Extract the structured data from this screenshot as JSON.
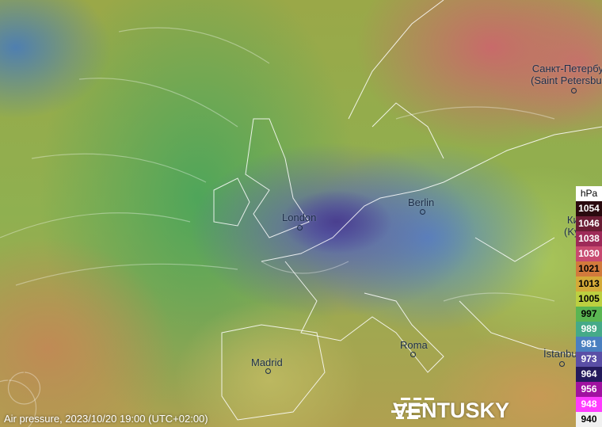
{
  "layer": "Air pressure",
  "caption": "Air pressure, 2023/10/20 19:00 (UTC+02:00)",
  "brand": "VENTUSKY",
  "cities": [
    {
      "name": "Санкт-Петербург",
      "alt": "(Saint Petersburg)"
    },
    {
      "name": "London"
    },
    {
      "name": "Berlin"
    },
    {
      "name": "Roma"
    },
    {
      "name": "Madrid"
    },
    {
      "name": "İstanbul"
    },
    {
      "name": "Київ",
      "alt": "(Kyiv)"
    }
  ],
  "legend": {
    "unit": "hPa",
    "items": [
      {
        "value": "1054",
        "color": "#2a0a0e",
        "text": "#fff"
      },
      {
        "value": "1046",
        "color": "#6b1d34",
        "text": "#fff"
      },
      {
        "value": "1038",
        "color": "#9e2a58",
        "text": "#fff"
      },
      {
        "value": "1030",
        "color": "#c84a70",
        "text": "#fff"
      },
      {
        "value": "1021",
        "color": "#d27a3c",
        "text": "#000"
      },
      {
        "value": "1013",
        "color": "#d4aa38",
        "text": "#000"
      },
      {
        "value": "1005",
        "color": "#bcd040",
        "text": "#000"
      },
      {
        "value": "997",
        "color": "#5ab552",
        "text": "#000"
      },
      {
        "value": "989",
        "color": "#45aa88",
        "text": "#fff"
      },
      {
        "value": "981",
        "color": "#4a7fc0",
        "text": "#fff"
      },
      {
        "value": "973",
        "color": "#5a4ea6",
        "text": "#fff"
      },
      {
        "value": "964",
        "color": "#241a5c",
        "text": "#fff"
      },
      {
        "value": "956",
        "color": "#a012a0",
        "text": "#fff"
      },
      {
        "value": "948",
        "color": "#ff3cff",
        "text": "#fff"
      },
      {
        "value": "940",
        "color": "#f0f0f0",
        "text": "#000"
      }
    ]
  }
}
